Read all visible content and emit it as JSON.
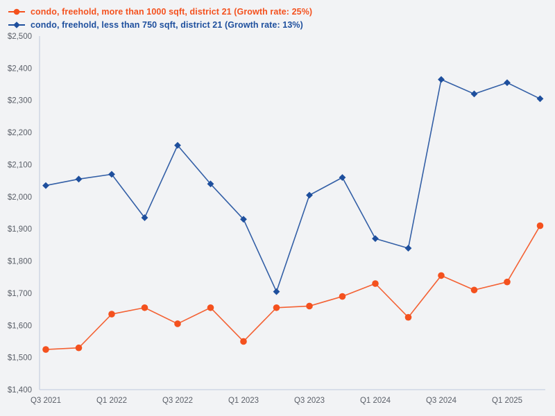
{
  "page": {
    "background": "#f2f3f5"
  },
  "chart_data": {
    "type": "line",
    "title": "",
    "xlabel": "",
    "ylabel": "",
    "categories": [
      "Q3 2021",
      "Q4 2021",
      "Q1 2022",
      "Q2 2022",
      "Q3 2022",
      "Q4 2022",
      "Q1 2023",
      "Q2 2023",
      "Q3 2023",
      "Q4 2023",
      "Q1 2024",
      "Q2 2024",
      "Q3 2024",
      "Q4 2024",
      "Q1 2025",
      "Q2 2025"
    ],
    "x_tick_labels": [
      "Q3 2021",
      "Q1 2022",
      "Q3 2022",
      "Q1 2023",
      "Q3 2023",
      "Q1 2024",
      "Q3 2024",
      "Q1 2025"
    ],
    "x_tick_every": 2,
    "series": [
      {
        "name": "condo, freehold, more than 1000 sqft, district 21 (Growth rate: 25%)",
        "growth_rate": "25%",
        "color": "#f4511e",
        "marker": "circle",
        "values": [
          1525,
          1530,
          1635,
          1655,
          1605,
          1655,
          1550,
          1655,
          1660,
          1690,
          1730,
          1625,
          1755,
          1710,
          1735,
          1910
        ]
      },
      {
        "name": "condo, freehold, less than 750 sqft, district 21 (Growth rate: 13%)",
        "growth_rate": "13%",
        "color": "#1e4f9d",
        "marker": "diamond",
        "values": [
          2035,
          2055,
          2070,
          1935,
          2160,
          2040,
          1930,
          1705,
          2005,
          2060,
          1870,
          1840,
          2365,
          2320,
          2355,
          2305
        ]
      }
    ],
    "ylim": [
      1400,
      2500
    ],
    "y_tick_step": 100,
    "y_tick_labels_top_down": [
      "$2,500",
      "$2,400",
      "$2,300",
      "$2,200",
      "$2,100",
      "$2,000",
      "$1,900",
      "$1,800",
      "$1,700",
      "$1,600",
      "$1,500",
      "$1,400"
    ],
    "grid": false,
    "legend_position": "top-left",
    "axis_color": "#c9d2e2",
    "tick_text_color": "#5a5f68"
  }
}
